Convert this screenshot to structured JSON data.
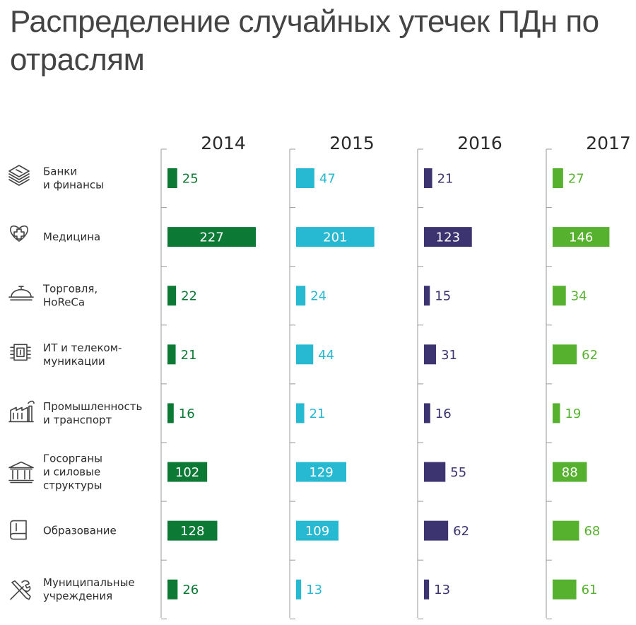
{
  "title": "Распределение случайных утечек ПДн по отраслям",
  "chart_data": {
    "type": "bar",
    "title": "Распределение случайных утечек ПДн по отраслям",
    "orientation": "horizontal",
    "layout": "small-multiples by year",
    "categories": [
      [
        "Банки",
        "и финансы"
      ],
      [
        "Медицина"
      ],
      [
        "Торговля,",
        "HoReCa"
      ],
      [
        "ИТ и телеком-",
        "муникации"
      ],
      [
        "Промышленность",
        "и транспорт"
      ],
      [
        "Госорганы",
        "и силовые",
        "структуры"
      ],
      [
        "Образование"
      ],
      [
        "Муниципальные",
        "учреждения"
      ]
    ],
    "category_icons": [
      "money-stack-icon",
      "heart-cross-icon",
      "serving-cloche-icon",
      "chip-icon",
      "factory-icon",
      "government-building-icon",
      "book-icon",
      "tools-icon"
    ],
    "series": [
      {
        "name": "2014",
        "color": "#0c7a35",
        "values": [
          25,
          227,
          22,
          21,
          16,
          102,
          128,
          26
        ]
      },
      {
        "name": "2015",
        "color": "#27b8d2",
        "values": [
          47,
          201,
          24,
          44,
          21,
          129,
          109,
          13
        ]
      },
      {
        "name": "2016",
        "color": "#3b3470",
        "values": [
          21,
          123,
          15,
          31,
          16,
          55,
          62,
          13
        ]
      },
      {
        "name": "2017",
        "color": "#56b22e",
        "values": [
          27,
          146,
          34,
          62,
          19,
          88,
          68,
          61
        ]
      }
    ],
    "xlim": [
      0,
      240
    ],
    "grid": false,
    "data_labels": "inside bar when wide, otherwise right of bar"
  }
}
